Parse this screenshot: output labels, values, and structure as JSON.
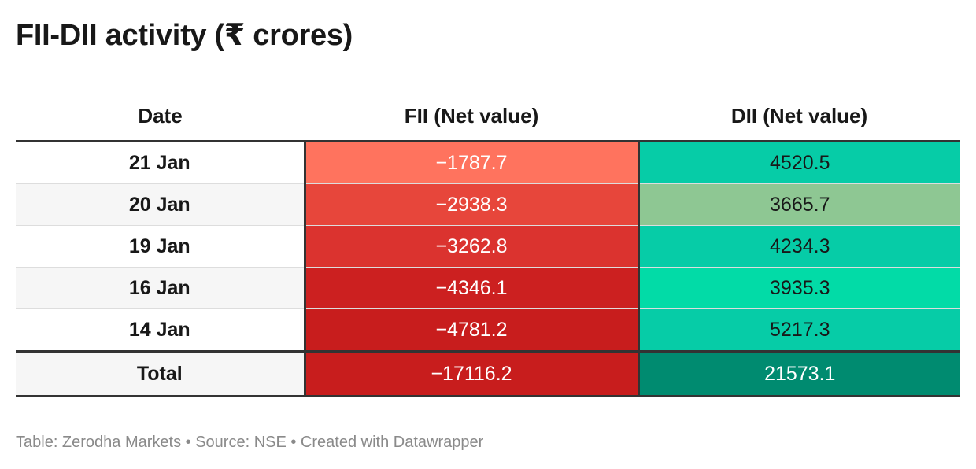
{
  "title": "FII-DII activity (₹ crores)",
  "footer": "Table: Zerodha Markets • Source: NSE • Created with Datawrapper",
  "chart_data": {
    "type": "table",
    "title": "FII-DII activity (₹ crores)",
    "columns": [
      "Date",
      "FII (Net value)",
      "DII (Net value)"
    ],
    "rows": [
      {
        "date": "21 Jan",
        "fii": "−1787.7",
        "dii": "4520.5",
        "fii_color": "#ff735e",
        "dii_color": "#06cca7",
        "fii_text": "#ffffff",
        "dii_text": "#181818"
      },
      {
        "date": "20 Jan",
        "fii": "−2938.3",
        "dii": "3665.7",
        "fii_color": "#e7463b",
        "dii_color": "#8ec793",
        "fii_text": "#ffffff",
        "dii_text": "#181818"
      },
      {
        "date": "19 Jan",
        "fii": "−3262.8",
        "dii": "4234.3",
        "fii_color": "#db332f",
        "dii_color": "#06cca7",
        "fii_text": "#ffffff",
        "dii_text": "#181818"
      },
      {
        "date": "16 Jan",
        "fii": "−4346.1",
        "dii": "3935.3",
        "fii_color": "#cc2020",
        "dii_color": "#02dba7",
        "fii_text": "#ffffff",
        "dii_text": "#181818"
      },
      {
        "date": "14 Jan",
        "fii": "−4781.2",
        "dii": "5217.3",
        "fii_color": "#c81d1d",
        "dii_color": "#06cca7",
        "fii_text": "#ffffff",
        "dii_text": "#181818"
      }
    ],
    "total": {
      "date": "Total",
      "fii": "−17116.2",
      "dii": "21573.1",
      "fii_color": "#c81d1d",
      "dii_color": "#008b70",
      "fii_text": "#ffffff",
      "dii_text": "#ffffff"
    }
  }
}
